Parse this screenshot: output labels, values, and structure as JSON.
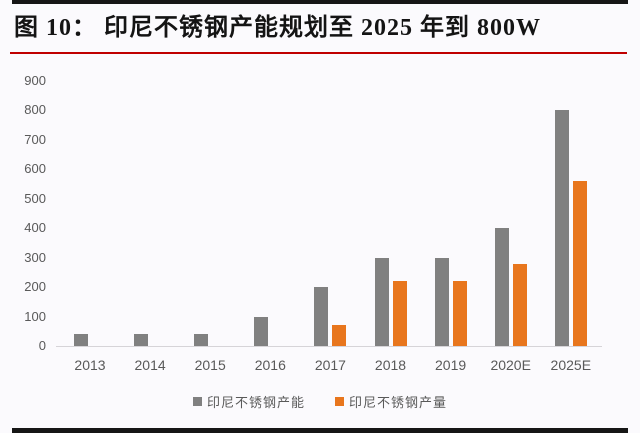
{
  "title": "图 10：  印尼不锈钢产能规划至 2025 年到 800W",
  "chart_data": {
    "type": "bar",
    "title": "印尼不锈钢产能规划至 2025 年到 800W",
    "categories": [
      "2013",
      "2014",
      "2015",
      "2016",
      "2017",
      "2018",
      "2019",
      "2020E",
      "2025E"
    ],
    "series": [
      {
        "name": "印尼不锈钢产能",
        "color": "#808080",
        "values": [
          40,
          40,
          40,
          100,
          200,
          300,
          300,
          400,
          800
        ]
      },
      {
        "name": "印尼不锈钢产量",
        "color": "#e8761d",
        "values": [
          0,
          0,
          0,
          0,
          70,
          220,
          220,
          280,
          560
        ]
      }
    ],
    "xlabel": "",
    "ylabel": "",
    "ylim": [
      0,
      900
    ],
    "yticks": [
      0,
      100,
      200,
      300,
      400,
      500,
      600,
      700,
      800,
      900
    ],
    "grid": false,
    "legend_position": "bottom"
  },
  "colors": {
    "title_text": "#141414",
    "rule_black": "#161616",
    "divider_red": "#c00000",
    "axis_text": "#595959",
    "axis_line": "#d6d4d8",
    "background": "#fbfafd"
  }
}
